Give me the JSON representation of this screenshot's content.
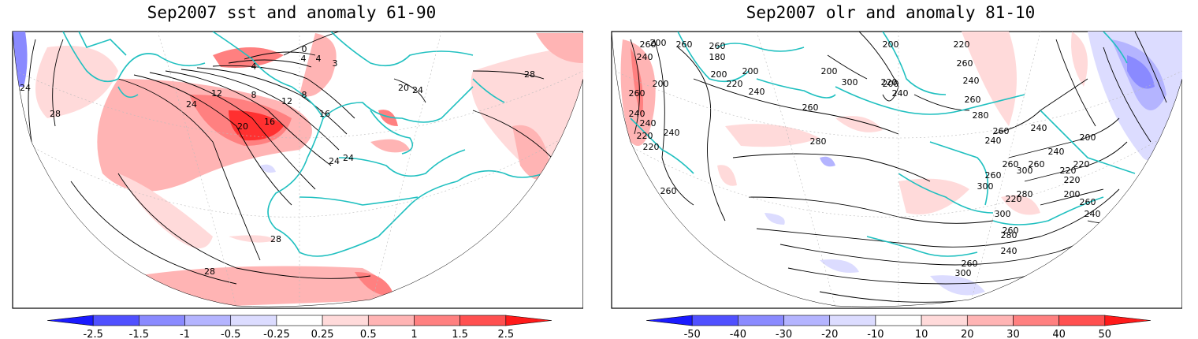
{
  "panels": [
    {
      "title": "Sep2007 sst and anomaly 61-90",
      "colorbar": {
        "labels": [
          "-2.5",
          "-1.5",
          "-1",
          "-0.5",
          "-0.25",
          "0.25",
          "0.5",
          "1",
          "1.5",
          "2.5"
        ],
        "colors": [
          "#1a1aff",
          "#5050ff",
          "#8a8aff",
          "#b4b4ff",
          "#dcdcff",
          "#ffffff",
          "#ffdada",
          "#ffb4b4",
          "#ff8080",
          "#ff5050",
          "#ff1a1a"
        ]
      },
      "contour_labels": [
        "24",
        "28",
        "24",
        "12",
        "8",
        "4",
        "4",
        "0",
        "4",
        "3",
        "16",
        "20",
        "16",
        "8",
        "12",
        "20",
        "24",
        "24",
        "28",
        "28",
        "28",
        "24"
      ]
    },
    {
      "title": "Sep2007 olr and anomaly 81-10",
      "colorbar": {
        "labels": [
          "-50",
          "-40",
          "-30",
          "-20",
          "-10",
          "10",
          "20",
          "30",
          "40",
          "50"
        ],
        "colors": [
          "#1a1aff",
          "#5050ff",
          "#8a8aff",
          "#b4b4ff",
          "#dcdcff",
          "#ffffff",
          "#ffdada",
          "#ffb4b4",
          "#ff8080",
          "#ff5050",
          "#ff1a1a"
        ]
      },
      "contour_labels": [
        "260",
        "240",
        "200",
        "240",
        "260",
        "260",
        "200",
        "260",
        "180",
        "200",
        "220",
        "240",
        "200",
        "200",
        "200",
        "200",
        "220",
        "240",
        "260",
        "280",
        "300",
        "220",
        "260",
        "240",
        "260",
        "280",
        "240",
        "260",
        "260",
        "300",
        "260",
        "300",
        "280",
        "260",
        "240",
        "220",
        "260",
        "240",
        "200",
        "220",
        "260",
        "240",
        "220",
        "240",
        "220",
        "200",
        "220",
        "240",
        "260",
        "300",
        "280",
        "260",
        "220",
        "300",
        "240"
      ]
    }
  ]
}
